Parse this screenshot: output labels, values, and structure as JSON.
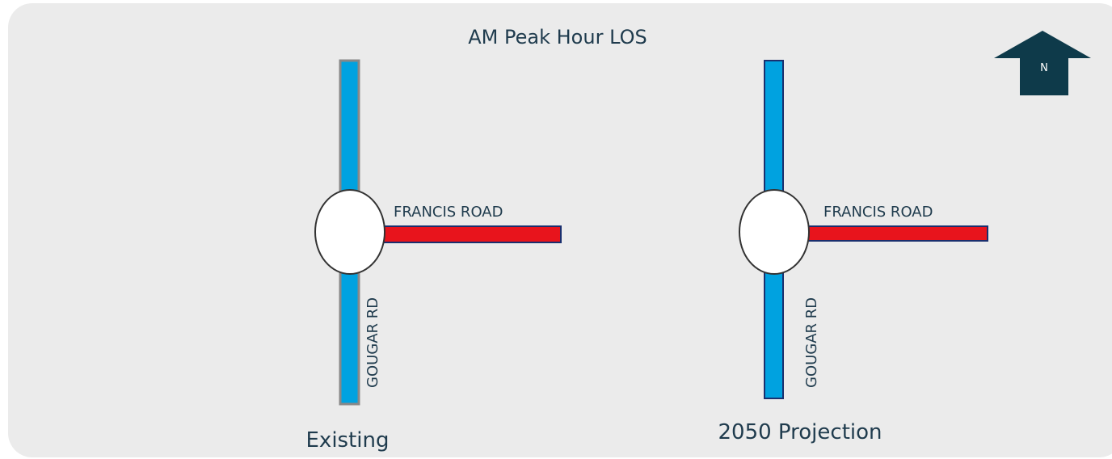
{
  "title": "AM Peak Hour LOS",
  "north": "N",
  "panels": [
    {
      "caption": "Existing",
      "east_road": "FRANCIS ROAD",
      "north_south_road": "GOUGAR RD"
    },
    {
      "caption": "2050 Projection",
      "east_road": "FRANCIS ROAD",
      "north_south_road": "GOUGAR RD"
    }
  ]
}
